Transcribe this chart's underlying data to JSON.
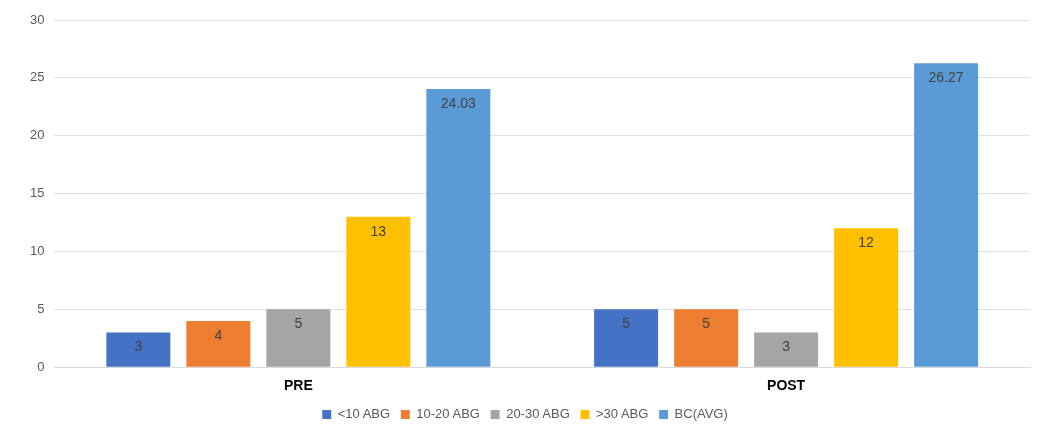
{
  "chart_data": {
    "type": "bar",
    "categories": [
      "PRE",
      "POST"
    ],
    "series": [
      {
        "name": "<10 ABG",
        "color": "#4472c4",
        "values": [
          3,
          5
        ]
      },
      {
        "name": "10-20 ABG",
        "color": "#ed7d31",
        "values": [
          4,
          5
        ]
      },
      {
        "name": "20-30 ABG",
        "color": "#a5a5a5",
        "values": [
          5,
          3
        ]
      },
      {
        "name": ">30 ABG",
        "color": "#ffc000",
        "values": [
          13,
          12
        ]
      },
      {
        "name": "BC(AVG)",
        "color": "#5b9bd5",
        "values": [
          24.03,
          26.27
        ]
      }
    ],
    "ylim": [
      0,
      30
    ],
    "yticks": [
      0,
      5,
      10,
      15,
      20,
      25,
      30
    ],
    "grid": "y",
    "legend": "bottom",
    "data_labels": true
  }
}
